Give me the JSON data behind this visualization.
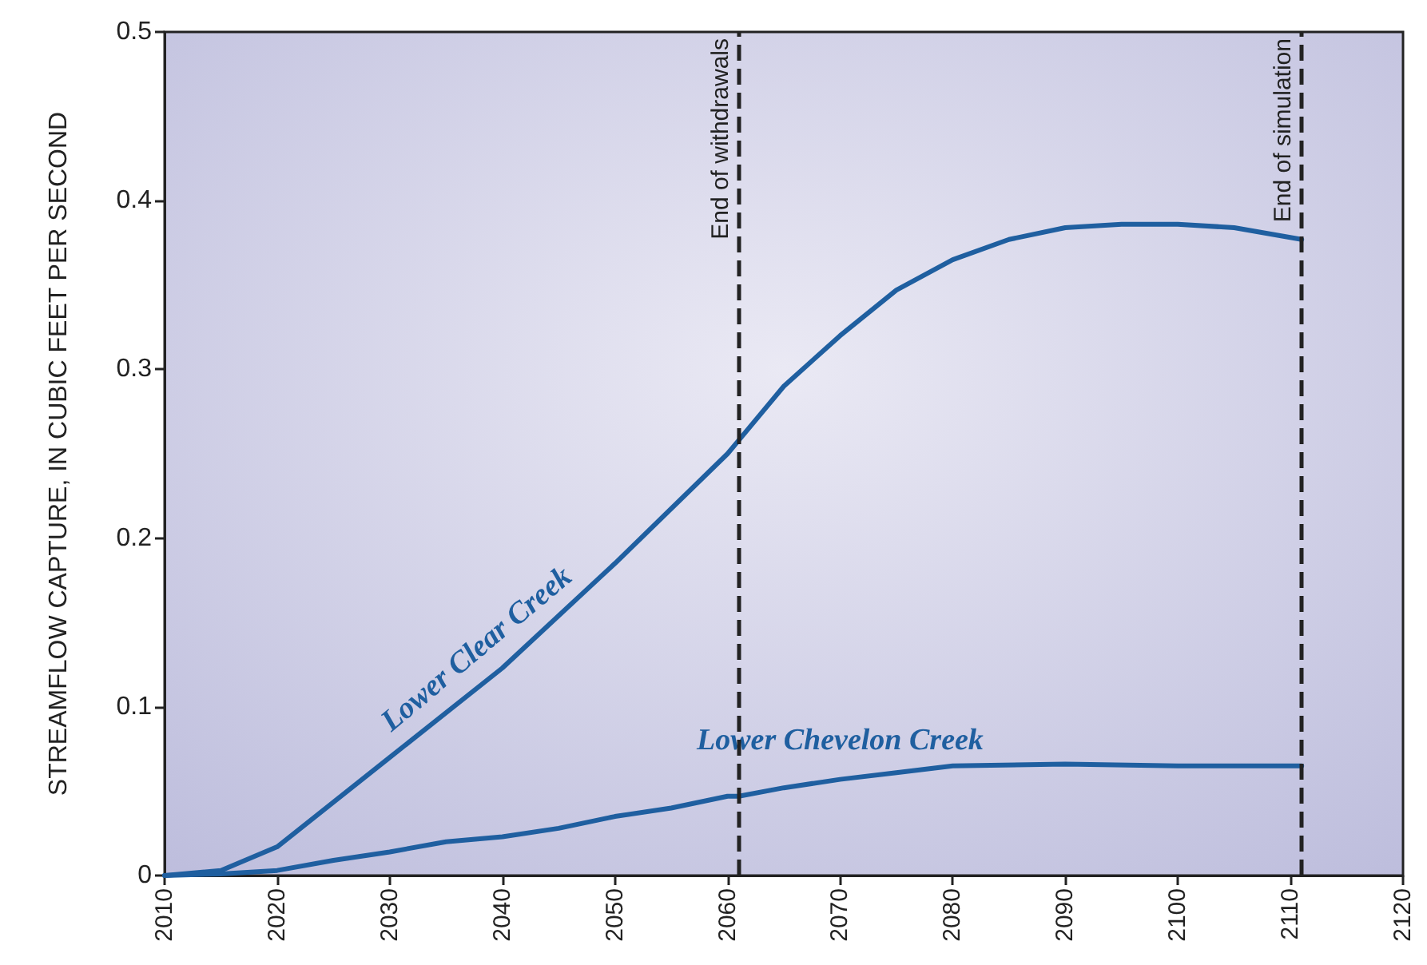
{
  "chart_data": {
    "type": "line",
    "ylabel": "STREAMFLOW CAPTURE, IN CUBIC FEET PER SECOND",
    "xlim": [
      2010,
      2120
    ],
    "xticks": [
      2010,
      2020,
      2030,
      2040,
      2050,
      2060,
      2070,
      2080,
      2090,
      2100,
      2110,
      2120
    ],
    "ylim": [
      0,
      0.5
    ],
    "yticks": [
      0,
      0.1,
      0.2,
      0.3,
      0.4,
      0.5
    ],
    "grid": false,
    "legend": false,
    "marker": "none",
    "line_style": "solid",
    "series": [
      {
        "name": "Lower Clear Creek",
        "color": "#1f5fa0",
        "x": [
          2010,
          2015,
          2020,
          2030,
          2040,
          2050,
          2060,
          2061,
          2065,
          2070,
          2075,
          2080,
          2085,
          2090,
          2095,
          2100,
          2105,
          2111
        ],
        "values": [
          0,
          0.003,
          0.017,
          0.07,
          0.123,
          0.185,
          0.25,
          0.258,
          0.29,
          0.32,
          0.347,
          0.365,
          0.377,
          0.384,
          0.386,
          0.386,
          0.384,
          0.377
        ]
      },
      {
        "name": "Lower Chevelon Creek",
        "color": "#1f5fa0",
        "x": [
          2010,
          2015,
          2020,
          2025,
          2030,
          2035,
          2040,
          2045,
          2050,
          2055,
          2060,
          2061,
          2065,
          2070,
          2075,
          2080,
          2090,
          2100,
          2111
        ],
        "values": [
          0,
          0.001,
          0.003,
          0.009,
          0.014,
          0.02,
          0.023,
          0.028,
          0.035,
          0.04,
          0.047,
          0.047,
          0.052,
          0.057,
          0.061,
          0.065,
          0.066,
          0.065,
          0.065
        ]
      }
    ],
    "ref_lines": [
      {
        "axis": "x",
        "value": 2061,
        "label": "End of withdrawals",
        "color": "#222222",
        "line_style": "dashed"
      },
      {
        "axis": "x",
        "value": 2111,
        "label": "End of simulation",
        "color": "#222222",
        "line_style": "dashed"
      }
    ]
  }
}
